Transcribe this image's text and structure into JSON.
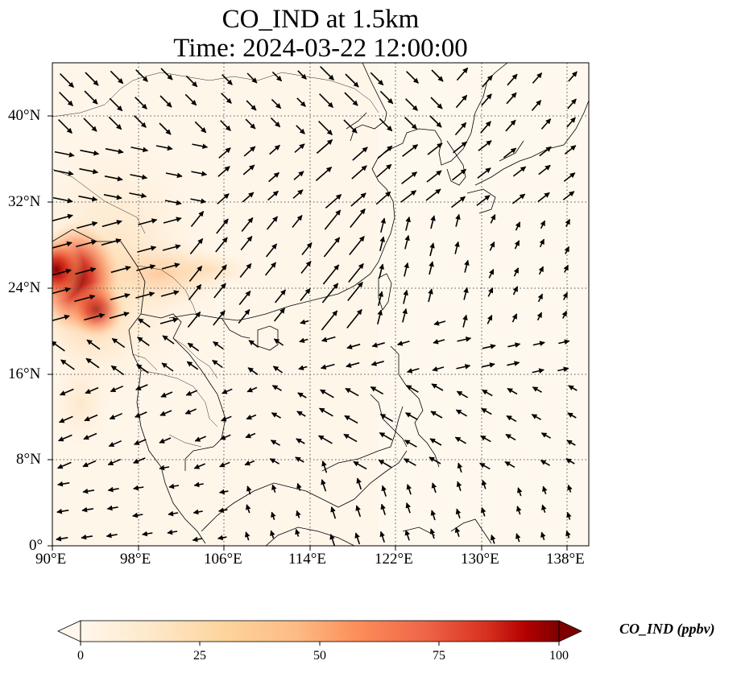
{
  "title": "CO_IND at 1.5km",
  "subtitle": "Time: 2024-03-22 12:00:00",
  "map": {
    "extent": {
      "lon": [
        90,
        140
      ],
      "lat": [
        0,
        45
      ]
    },
    "x_ticks": [
      "90°E",
      "98°E",
      "106°E",
      "114°E",
      "122°E",
      "130°E",
      "138°E"
    ],
    "y_ticks": [
      "0°",
      "8°N",
      "16°N",
      "24°N",
      "32°N",
      "40°N"
    ],
    "gridlines": "dotted",
    "coastlines": true,
    "borders": true,
    "wind_vectors": true
  },
  "colorbar": {
    "colormap": "OrRd",
    "ticks": [
      "0",
      "25",
      "50",
      "75",
      "100"
    ],
    "range": [
      0,
      100
    ],
    "extend": "both",
    "label": "CO_IND (ppbv)"
  },
  "colors": {
    "low": "#fff7ec",
    "mid": "#fdbb84",
    "high": "#d7301f",
    "max": "#7f0000"
  }
}
